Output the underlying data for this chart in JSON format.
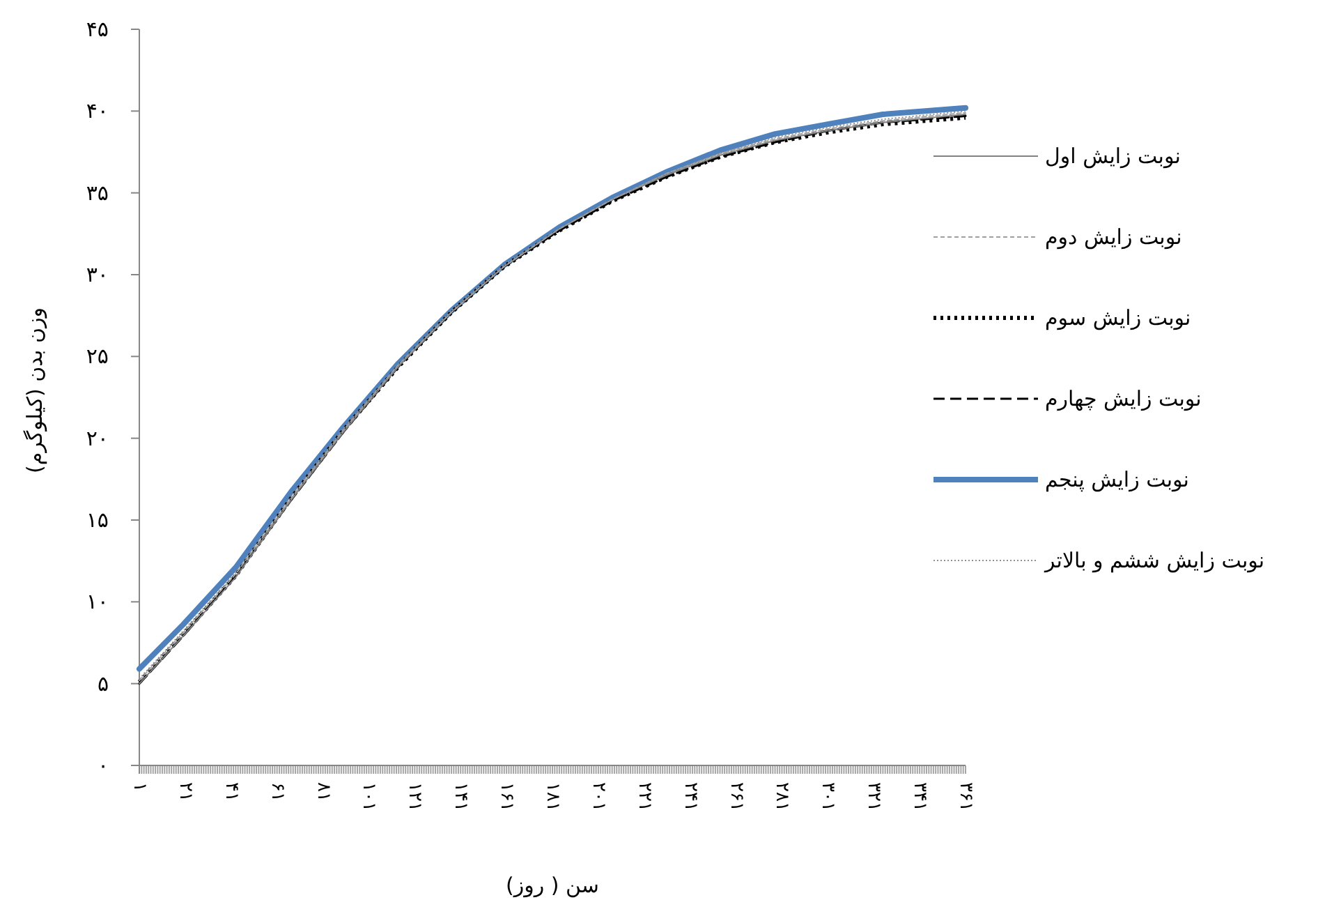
{
  "chart_data": {
    "type": "line",
    "xlabel": "سن ( روز)",
    "ylabel": "وزن بدن (کیلوگرم)",
    "x": [
      1,
      20,
      43,
      67,
      90,
      114,
      137,
      160,
      184,
      207,
      231,
      254,
      278,
      301,
      325,
      361
    ],
    "xlim": [
      1,
      361
    ],
    "xticks": [
      {
        "value": 1,
        "label": "۱"
      },
      {
        "value": 21,
        "label": "۲۱"
      },
      {
        "value": 41,
        "label": "۴۱"
      },
      {
        "value": 61,
        "label": "۶۱"
      },
      {
        "value": 81,
        "label": "۸۱"
      },
      {
        "value": 101,
        "label": "۱۰۱"
      },
      {
        "value": 121,
        "label": "۱۲۱"
      },
      {
        "value": 141,
        "label": "۱۴۱"
      },
      {
        "value": 161,
        "label": "۱۶۱"
      },
      {
        "value": 181,
        "label": "۱۸۱"
      },
      {
        "value": 201,
        "label": "۲۰۱"
      },
      {
        "value": 221,
        "label": "۲۲۱"
      },
      {
        "value": 241,
        "label": "۲۴۱"
      },
      {
        "value": 261,
        "label": "۲۶۱"
      },
      {
        "value": 281,
        "label": "۲۸۱"
      },
      {
        "value": 301,
        "label": "۳۰۱"
      },
      {
        "value": 321,
        "label": "۳۲۱"
      },
      {
        "value": 341,
        "label": "۳۴۱"
      },
      {
        "value": 361,
        "label": "۳۶۱"
      }
    ],
    "ylim": [
      0,
      45
    ],
    "yticks": [
      {
        "value": 0,
        "label": "۰"
      },
      {
        "value": 5,
        "label": "۵"
      },
      {
        "value": 10,
        "label": "۱۰"
      },
      {
        "value": 15,
        "label": "۱۵"
      },
      {
        "value": 20,
        "label": "۲۰"
      },
      {
        "value": 25,
        "label": "۲۵"
      },
      {
        "value": 30,
        "label": "۳۰"
      },
      {
        "value": 35,
        "label": "۳۵"
      },
      {
        "value": 40,
        "label": "۴۰"
      },
      {
        "value": 45,
        "label": "۴۵"
      }
    ],
    "legend": "right",
    "grid": false,
    "marker": "none",
    "series": [
      {
        "name": "نوبت زایش اول",
        "color": "#808080",
        "line_style": "solid",
        "values": [
          5.0,
          7.9,
          11.5,
          16.2,
          20.4,
          24.4,
          27.7,
          30.5,
          32.8,
          34.6,
          36.1,
          37.3,
          38.2,
          38.8,
          39.3,
          39.8
        ]
      },
      {
        "name": "نوبت زایش دوم",
        "color": "#a0a0a0",
        "line_style": "dashed",
        "values": [
          5.2,
          8.1,
          11.7,
          16.3,
          20.5,
          24.5,
          27.7,
          30.5,
          32.8,
          34.6,
          36.2,
          37.4,
          38.3,
          38.9,
          39.4,
          39.9
        ]
      },
      {
        "name": "نوبت زایش سوم",
        "color": "#000000",
        "line_style": "dotted",
        "values": [
          5.1,
          8.0,
          11.6,
          16.3,
          20.5,
          24.4,
          27.7,
          30.5,
          32.7,
          34.5,
          36.0,
          37.2,
          38.1,
          38.7,
          39.2,
          39.6
        ]
      },
      {
        "name": "نوبت زایش چهارم",
        "color": "#000000",
        "line_style": "dashed",
        "values": [
          5.0,
          7.9,
          11.6,
          16.2,
          20.4,
          24.4,
          27.7,
          30.5,
          32.7,
          34.5,
          36.0,
          37.2,
          38.1,
          38.8,
          39.3,
          39.7
        ]
      },
      {
        "name": "نوبت زایش پنجم",
        "color": "#4f81bd",
        "line_style": "solid",
        "values": [
          5.9,
          8.6,
          12.1,
          16.7,
          20.7,
          24.6,
          27.8,
          30.6,
          32.9,
          34.7,
          36.3,
          37.6,
          38.6,
          39.2,
          39.8,
          40.2
        ]
      },
      {
        "name": "نوبت زایش ششم و بالاتر",
        "color": "#909090",
        "line_style": "dotted",
        "values": [
          5.3,
          8.2,
          11.8,
          16.4,
          20.6,
          24.5,
          27.8,
          30.6,
          32.8,
          34.6,
          36.2,
          37.4,
          38.4,
          39.0,
          39.5,
          40.0
        ]
      }
    ]
  }
}
